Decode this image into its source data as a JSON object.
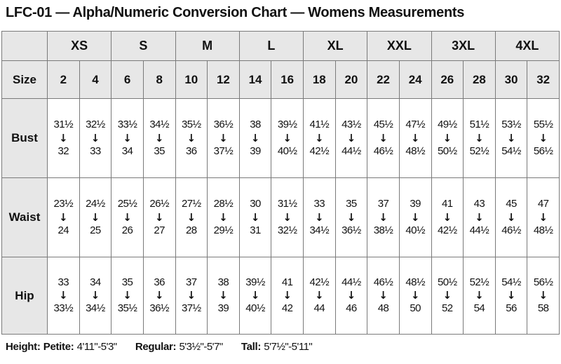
{
  "title": "LFC-01 — Alpha/Numeric Conversion Chart — Womens Measurements",
  "icons": {
    "down_arrow": "↓"
  },
  "colors": {
    "header_fill": "#e7e7e7",
    "border": "#7a7a7a",
    "text": "#111111",
    "background": "#ffffff"
  },
  "table": {
    "corner_label": "",
    "size_row_label": "Size",
    "alpha_sizes": [
      "XS",
      "S",
      "M",
      "L",
      "XL",
      "XXL",
      "3XL",
      "4XL"
    ],
    "numeric_sizes": [
      "2",
      "4",
      "6",
      "8",
      "10",
      "12",
      "14",
      "16",
      "18",
      "20",
      "22",
      "24",
      "26",
      "28",
      "30",
      "32"
    ],
    "measurement_rows": [
      {
        "label": "Bust",
        "cells": [
          {
            "from": "31½",
            "to": "32"
          },
          {
            "from": "32½",
            "to": "33"
          },
          {
            "from": "33½",
            "to": "34"
          },
          {
            "from": "34½",
            "to": "35"
          },
          {
            "from": "35½",
            "to": "36"
          },
          {
            "from": "36½",
            "to": "37½"
          },
          {
            "from": "38",
            "to": "39"
          },
          {
            "from": "39½",
            "to": "40½"
          },
          {
            "from": "41½",
            "to": "42½"
          },
          {
            "from": "43½",
            "to": "44½"
          },
          {
            "from": "45½",
            "to": "46½"
          },
          {
            "from": "47½",
            "to": "48½"
          },
          {
            "from": "49½",
            "to": "50½"
          },
          {
            "from": "51½",
            "to": "52½"
          },
          {
            "from": "53½",
            "to": "54½"
          },
          {
            "from": "55½",
            "to": "56½"
          }
        ]
      },
      {
        "label": "Waist",
        "cells": [
          {
            "from": "23½",
            "to": "24"
          },
          {
            "from": "24½",
            "to": "25"
          },
          {
            "from": "25½",
            "to": "26"
          },
          {
            "from": "26½",
            "to": "27"
          },
          {
            "from": "27½",
            "to": "28"
          },
          {
            "from": "28½",
            "to": "29½"
          },
          {
            "from": "30",
            "to": "31"
          },
          {
            "from": "31½",
            "to": "32½"
          },
          {
            "from": "33",
            "to": "34½"
          },
          {
            "from": "35",
            "to": "36½"
          },
          {
            "from": "37",
            "to": "38½"
          },
          {
            "from": "39",
            "to": "40½"
          },
          {
            "from": "41",
            "to": "42½"
          },
          {
            "from": "43",
            "to": "44½"
          },
          {
            "from": "45",
            "to": "46½"
          },
          {
            "from": "47",
            "to": "48½"
          }
        ]
      },
      {
        "label": "Hip",
        "cells": [
          {
            "from": "33",
            "to": "33½"
          },
          {
            "from": "34",
            "to": "34½"
          },
          {
            "from": "35",
            "to": "35½"
          },
          {
            "from": "36",
            "to": "36½"
          },
          {
            "from": "37",
            "to": "37½"
          },
          {
            "from": "38",
            "to": "39"
          },
          {
            "from": "39½",
            "to": "40½"
          },
          {
            "from": "41",
            "to": "42"
          },
          {
            "from": "42½",
            "to": "44"
          },
          {
            "from": "44½",
            "to": "46"
          },
          {
            "from": "46½",
            "to": "48"
          },
          {
            "from": "48½",
            "to": "50"
          },
          {
            "from": "50½",
            "to": "52"
          },
          {
            "from": "52½",
            "to": "54"
          },
          {
            "from": "54½",
            "to": "56"
          },
          {
            "from": "56½",
            "to": "58"
          }
        ]
      }
    ]
  },
  "footer": {
    "height_label": "Height:",
    "segments": [
      {
        "label": "Petite:",
        "value": "4'11\"-5'3\""
      },
      {
        "label": "Regular:",
        "value": "5'3½\"-5'7\""
      },
      {
        "label": "Tall:",
        "value": "5'7½\"-5'11\""
      }
    ]
  }
}
